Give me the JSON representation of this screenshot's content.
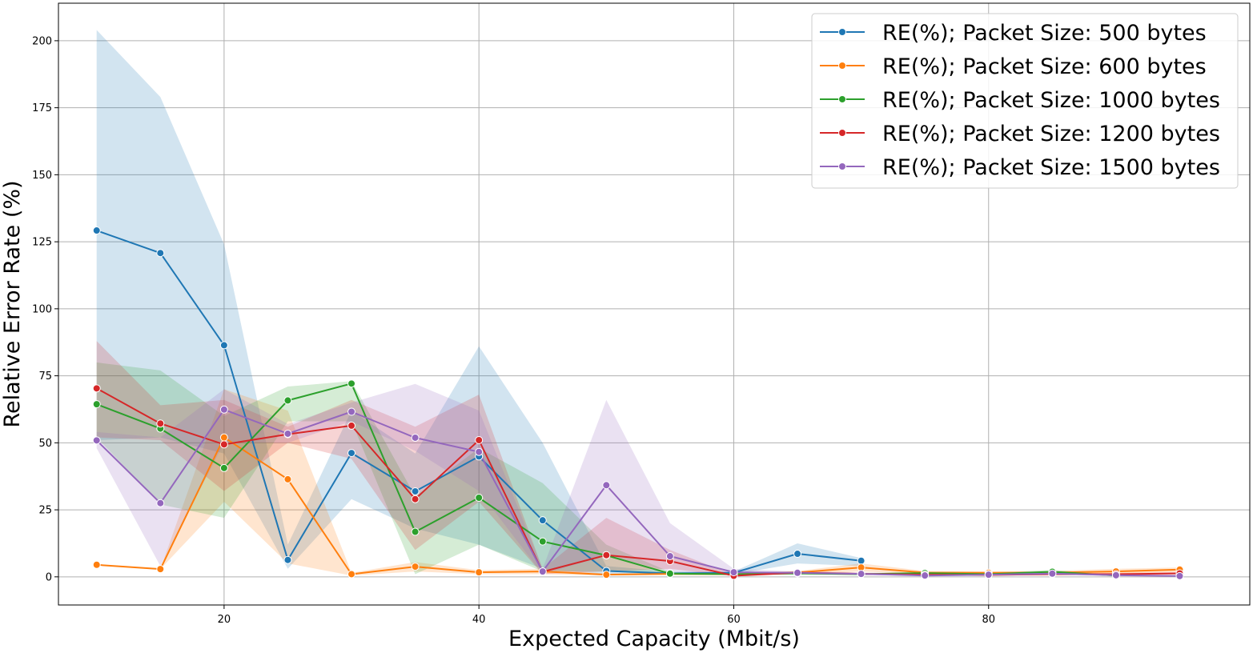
{
  "chart_data": {
    "type": "line",
    "title": "",
    "xlabel": "Expected Capacity (Mbit/s)",
    "ylabel": "Relative Error Rate (%)",
    "xlim": [
      7,
      100.5
    ],
    "ylim": [
      -10.5,
      214
    ],
    "xticks": [
      20,
      40,
      60,
      80
    ],
    "yticks": [
      0,
      25,
      50,
      75,
      100,
      125,
      150,
      175,
      200
    ],
    "grid": true,
    "legend_position": "top-right",
    "series": [
      {
        "name": "RE(%); Packet Size: 500 bytes",
        "color": "#1f77b4",
        "x": [
          10,
          15,
          20,
          25,
          30,
          35,
          40,
          45,
          50,
          55,
          60,
          65,
          70
        ],
        "y": [
          129.2,
          120.8,
          86.4,
          6.3,
          46.2,
          31.9,
          44.9,
          21.1,
          2.2,
          1.3,
          1.5,
          8.6,
          6.0
        ],
        "ci_low": [
          51,
          52,
          46,
          3,
          29,
          18,
          12,
          3,
          1,
          1,
          1,
          5,
          4
        ],
        "ci_high": [
          204,
          179,
          124,
          12,
          62,
          46,
          86,
          50,
          4,
          2,
          2,
          12.5,
          7
        ]
      },
      {
        "name": "RE(%); Packet Size: 600 bytes",
        "color": "#ff7f0e",
        "x": [
          10,
          15,
          20,
          25,
          30,
          35,
          40,
          45,
          50,
          55,
          60,
          65,
          70,
          75,
          80,
          85,
          90,
          95
        ],
        "y": [
          4.5,
          2.9,
          52.0,
          36.4,
          1.0,
          3.8,
          1.7,
          2.0,
          0.8,
          1.1,
          1.0,
          1.6,
          3.5,
          1.6,
          1.5,
          1.6,
          2.0,
          2.7
        ],
        "ci_low": [
          4.5,
          2.9,
          28,
          5,
          0.5,
          2,
          1,
          1,
          0.5,
          0.7,
          0.7,
          1,
          2,
          1,
          1,
          1,
          1.2,
          1.8
        ],
        "ci_high": [
          4.5,
          2.9,
          70,
          62,
          1.5,
          5.5,
          2.5,
          3,
          1.2,
          1.5,
          1.5,
          2.2,
          5,
          2.2,
          2,
          2.2,
          3,
          3.5
        ]
      },
      {
        "name": "RE(%); Packet Size: 1000 bytes",
        "color": "#2ca02c",
        "x": [
          10,
          15,
          20,
          25,
          30,
          35,
          40,
          45,
          50,
          55,
          60,
          65,
          70,
          75,
          80,
          85,
          90
        ],
        "y": [
          64.4,
          55.3,
          40.6,
          65.8,
          72.1,
          16.8,
          29.5,
          13.2,
          8.0,
          1.2,
          1.0,
          1.3,
          1.0,
          1.4,
          1.0,
          1.9,
          0.5
        ],
        "ci_low": [
          52,
          27,
          22,
          58,
          58,
          1,
          12,
          2,
          2,
          0.7,
          0.7,
          0.8,
          0.7,
          1,
          0.7,
          1.2,
          0.3
        ],
        "ci_high": [
          80,
          77,
          60,
          71,
          73,
          30,
          48,
          35,
          12,
          1.8,
          1.3,
          1.8,
          1.4,
          1.8,
          1.4,
          2.6,
          0.8
        ]
      },
      {
        "name": "RE(%); Packet Size: 1200 bytes",
        "color": "#d62728",
        "x": [
          10,
          15,
          20,
          25,
          30,
          35,
          40,
          45,
          50,
          55,
          60,
          65,
          70,
          75,
          80,
          85,
          90,
          95
        ],
        "y": [
          70.3,
          57.2,
          49.4,
          53.2,
          56.4,
          29.0,
          51.0,
          1.9,
          8.1,
          5.9,
          0.4,
          1.6,
          1.1,
          0.8,
          0.7,
          1.0,
          1.0,
          1.3
        ],
        "ci_low": [
          52,
          51,
          32,
          50,
          44,
          10,
          28,
          1,
          2,
          3,
          0.2,
          1,
          0.7,
          0.5,
          0.5,
          0.6,
          0.6,
          0.9
        ],
        "ci_high": [
          88,
          64,
          66,
          56,
          66,
          56,
          68,
          3,
          22,
          10,
          0.7,
          2.2,
          1.6,
          1.2,
          1,
          1.4,
          1.4,
          1.8
        ]
      },
      {
        "name": "RE(%); Packet Size: 1500 bytes",
        "color": "#9467bd",
        "x": [
          10,
          15,
          20,
          25,
          30,
          35,
          40,
          45,
          50,
          55,
          60,
          65,
          70,
          75,
          80,
          85,
          90,
          95
        ],
        "y": [
          50.9,
          27.5,
          62.4,
          53.4,
          61.6,
          51.9,
          46.6,
          2.0,
          34.2,
          7.7,
          1.7,
          1.5,
          1.1,
          0.5,
          0.8,
          1.2,
          0.6,
          0.3
        ],
        "ci_low": [
          48,
          4,
          50,
          50,
          58,
          47,
          32,
          1,
          8,
          2,
          1,
          1,
          0.7,
          0.3,
          0.5,
          0.8,
          0.4,
          0.2
        ],
        "ci_high": [
          54,
          52,
          70,
          57,
          65,
          72,
          62,
          3,
          66,
          20,
          3,
          2,
          1.5,
          0.8,
          1.1,
          1.6,
          0.9,
          0.5
        ]
      }
    ]
  }
}
